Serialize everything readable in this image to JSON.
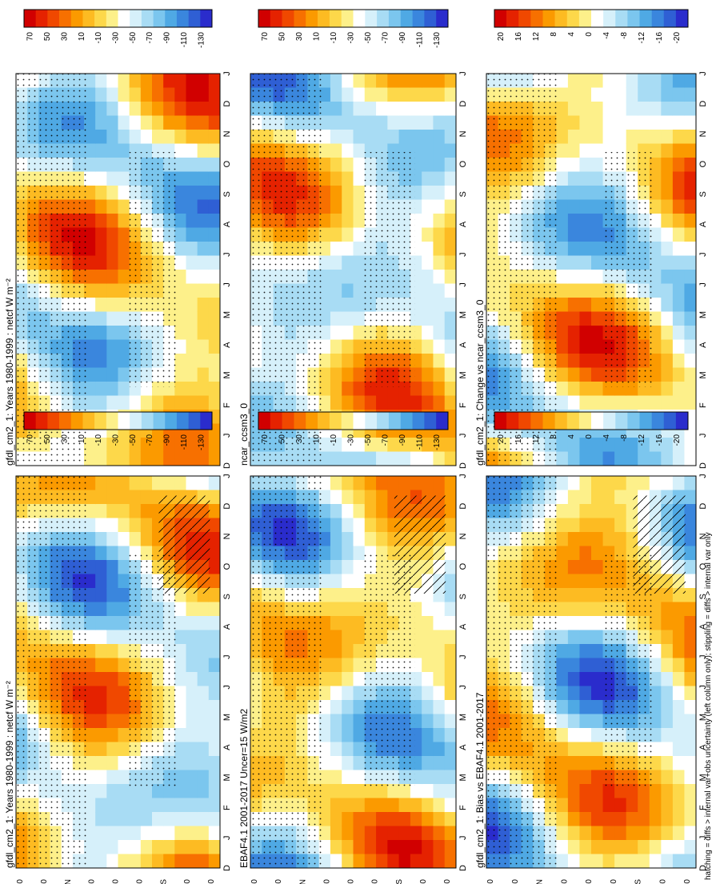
{
  "figure": {
    "footnote": "hatching = diffs > internal var+obs uncertainty (left column only); stippling = diffs > internal var only"
  },
  "colors": {
    "diverging": [
      "#d10000",
      "#e52200",
      "#f04800",
      "#f77000",
      "#fb9a00",
      "#fdbb22",
      "#fdd84a",
      "#fdf08a",
      "#ffffff",
      "#d6f0fa",
      "#a8dcf4",
      "#7bc6ee",
      "#4fa9e4",
      "#3a86dd",
      "#2f5fd4",
      "#2a2ccc"
    ],
    "axis": "#000000",
    "stipple": "#000000"
  },
  "chart_data": [
    {
      "id": "p1",
      "type": "heatmap",
      "title": "gfdl_cm2_1: Years 1980-1999 : netcf W m⁻²",
      "colorbar": [
        "70",
        "50",
        "30",
        "10",
        "-10",
        "-30",
        "-50",
        "-70",
        "-90",
        "-110",
        "-130"
      ],
      "hatched": true
    },
    {
      "id": "p2",
      "type": "heatmap",
      "title": "gfdl_cm2_1: Years 1980-1999 : netcf W m⁻²",
      "colorbar": [
        "70",
        "50",
        "30",
        "10",
        "-10",
        "-30",
        "-50",
        "-70",
        "-90",
        "-110",
        "-130"
      ],
      "hatched": false
    },
    {
      "id": "p3",
      "type": "heatmap",
      "title": "EBAF4.1 2001-2017 Uncer=15 W/m2",
      "colorbar": [
        "70",
        "50",
        "30",
        "10",
        "-10",
        "-30",
        "-50",
        "-70",
        "-90",
        "-110",
        "-130"
      ],
      "hatched": true
    },
    {
      "id": "p4",
      "type": "heatmap",
      "title": "ncar_ccsm3_0",
      "colorbar": [
        "70",
        "50",
        "30",
        "10",
        "-10",
        "-30",
        "-50",
        "-70",
        "-90",
        "-110",
        "-130"
      ],
      "hatched": false
    },
    {
      "id": "p5",
      "type": "heatmap",
      "title": "gfdl_cm2_1: Bias vs EBAF4.1 2001-2017",
      "colorbar": [
        "20",
        "16",
        "12",
        "8",
        "4",
        "0",
        "-4",
        "-8",
        "-12",
        "-16",
        "-20"
      ],
      "hatched": true
    },
    {
      "id": "p6",
      "type": "heatmap",
      "title": "gfdl_cm2_1: Change vs ncar_ccsm3_0",
      "colorbar": [
        "20",
        "16",
        "12",
        "8",
        "4",
        "0",
        "-4",
        "-8",
        "-12",
        "-16",
        "-20"
      ],
      "hatched": false
    }
  ],
  "axes": {
    "months": [
      "D",
      "J",
      "F",
      "M",
      "A",
      "M",
      "J",
      "J",
      "A",
      "S",
      "O",
      "N",
      "D",
      "J"
    ],
    "latitudes": [
      "80",
      "60",
      "°N",
      "20",
      "0",
      "20",
      "°S",
      "60",
      "80"
    ]
  }
}
